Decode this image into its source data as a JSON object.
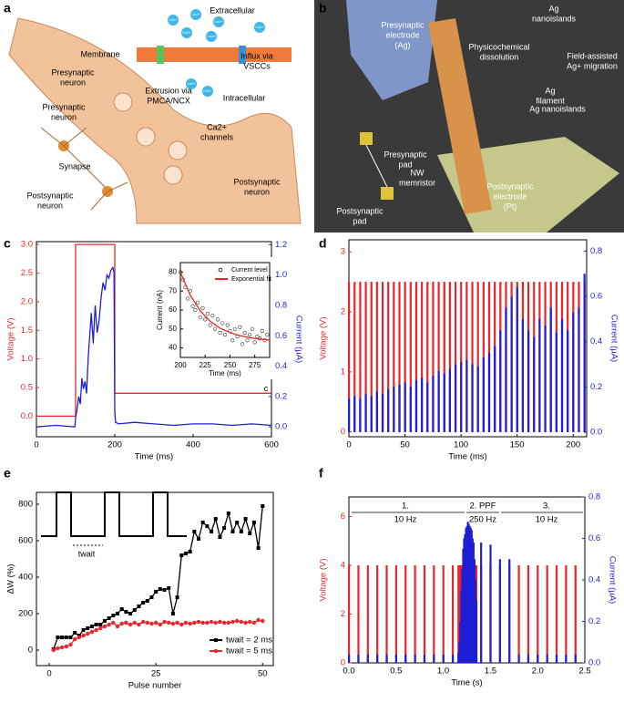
{
  "panel_labels": [
    "a",
    "b",
    "c",
    "d",
    "e",
    "f"
  ],
  "illustration_a": {
    "ion": "Ca2+",
    "labels": [
      [
        "Extracellular"
      ],
      [
        "Membrane"
      ],
      [
        "Influx via",
        "VSCCs"
      ],
      [
        "Extrusion via",
        "PMCA/NCX"
      ],
      [
        "Intracellular"
      ],
      [
        "Presynaptic",
        "neuron"
      ],
      [
        "Presynaptic",
        "neuron"
      ],
      [
        "Ca2+",
        "channels"
      ],
      [
        "Synapse"
      ],
      [
        "Postsynaptic",
        "neuron"
      ],
      [
        "Postsynaptic",
        "neuron"
      ]
    ]
  },
  "illustration_b": {
    "labels": [
      [
        "Presynaptic",
        "electrode",
        "(Ag)"
      ],
      [
        "Ag",
        "nanoislands"
      ],
      [
        "Physicochemical",
        "dissolution"
      ],
      [
        "Field-assisted",
        "Ag+ migration"
      ],
      [
        "Ag",
        "filament"
      ],
      [
        "Ag nanoislands"
      ],
      [
        "Presynaptic",
        "pad"
      ],
      [
        "NW",
        "memristor"
      ],
      [
        "Postsynaptic",
        "electrode",
        "(Pt)"
      ],
      [
        "Postsynaptic",
        "pad"
      ]
    ]
  },
  "chart_data": [
    {
      "type": "line",
      "xlabel": "Time (ms)",
      "ylabel": "Voltage (V)",
      "y2label": "Current (µA)",
      "y_color": "#e8262b",
      "y2_color": "#1f1fd6",
      "xlim": [
        0,
        600
      ],
      "xticks": [
        0,
        200,
        400,
        600
      ],
      "ylim": [
        -0.36,
        3.05
      ],
      "yticks": [
        {
          "value": 0,
          "label": "0.0"
        },
        0.5,
        {
          "value": 1,
          "label": "1.0"
        },
        1.5,
        {
          "value": 2,
          "label": "2.0"
        },
        2.5,
        {
          "value": 3,
          "label": "3.0"
        }
      ],
      "y2lim": [
        -0.065,
        1.22
      ],
      "y2ticks": [
        {
          "value": 0,
          "label": "0.0"
        },
        0.2,
        0.4,
        0.6,
        0.8,
        {
          "value": 1,
          "label": "1.0"
        },
        1.2
      ],
      "annotations": [
        "c"
      ],
      "series": [
        {
          "color": "#e8262b",
          "axis": "y",
          "x": [
            0,
            100,
            100,
            200,
            200,
            600
          ],
          "values": [
            0,
            0,
            3,
            3,
            0.4,
            0.4
          ]
        },
        {
          "color": "#1f1fd6",
          "axis": "y2",
          "x": [
            0,
            50,
            98,
            100,
            104,
            108,
            112,
            116,
            120,
            124,
            128,
            132,
            136,
            140,
            145,
            150,
            155,
            160,
            165,
            170,
            175,
            180,
            185,
            190,
            195,
            198,
            200,
            202,
            210,
            250,
            300,
            350,
            400,
            450,
            500,
            550,
            600
          ],
          "values": [
            0.0,
            0.01,
            0.0,
            0.06,
            0.12,
            0.2,
            0.15,
            0.32,
            0.25,
            0.3,
            0.22,
            0.45,
            0.6,
            0.75,
            0.55,
            0.8,
            0.62,
            0.7,
            0.85,
            0.95,
            0.9,
            1.0,
            0.98,
            1.03,
            1.05,
            1.02,
            0.1,
            0.03,
            0.02,
            0.03,
            0.02,
            0.01,
            0.02,
            0.02,
            0.01,
            0.02,
            0.01
          ]
        }
      ]
    },
    {
      "type": "scatter",
      "xlabel": "Time (ms)",
      "ylabel": "Current (nA)",
      "xlim": [
        200,
        290
      ],
      "xticks": [
        200,
        225,
        250,
        275
      ],
      "ylim": [
        35,
        85
      ],
      "yticks": [
        40,
        50,
        60,
        70,
        80
      ],
      "series": [
        {
          "name": "Current level",
          "color": "#333333",
          "x": [
            200,
            202.5,
            205,
            207.5,
            210,
            212.5,
            215,
            217.5,
            220,
            222.5,
            225,
            227.5,
            230,
            232.5,
            235,
            237.5,
            240,
            242.5,
            245,
            247.5,
            250,
            252.5,
            255,
            257.5,
            260,
            262.5,
            265,
            267.5,
            270,
            272.5,
            275,
            277.5,
            280,
            282.5,
            285,
            287.5
          ],
          "values": [
            80,
            76,
            72,
            66,
            70,
            62,
            60,
            64,
            56,
            61,
            55,
            58,
            52,
            57,
            50,
            55,
            48,
            53,
            47,
            52,
            49,
            44,
            50,
            46,
            51,
            42,
            48,
            44,
            47,
            50,
            43,
            46,
            45,
            49,
            44,
            47
          ]
        },
        {
          "name": "Exponential fit",
          "type": "line",
          "color": "#e8262b",
          "x": [
            200,
            210,
            220,
            230,
            240,
            250,
            260,
            270,
            280,
            290
          ],
          "values": [
            80,
            67.8,
            59.6,
            54.1,
            50.4,
            48.1,
            46.5,
            45.4,
            44.7,
            44.2
          ]
        }
      ]
    },
    {
      "type": "pulse",
      "xlabel": "Time (ms)",
      "ylabel": "Voltage (V)",
      "y2label": "Current (µA)",
      "y_color": "#e8262b",
      "y2_color": "#1f1fd6",
      "xlim": [
        0,
        212
      ],
      "xticks": [
        0,
        50,
        100,
        150,
        200
      ],
      "ylim": [
        -0.08,
        3.2
      ],
      "yticks": [
        0,
        1,
        2,
        3
      ],
      "y2lim": [
        -0.02,
        0.85
      ],
      "y2ticks": [
        {
          "value": 0,
          "label": "0.0"
        },
        0.2,
        0.4,
        0.6,
        0.8
      ],
      "x": [
        0,
        5,
        10,
        15,
        20,
        25,
        30,
        35,
        40,
        45,
        50,
        55,
        60,
        65,
        70,
        75,
        80,
        85,
        90,
        95,
        100,
        105,
        110,
        115,
        120,
        125,
        130,
        135,
        140,
        145,
        150,
        155,
        160,
        165,
        170,
        175,
        180,
        185,
        190,
        195,
        200,
        205,
        210
      ],
      "series": [
        {
          "color": "#e8262b",
          "axis": "y",
          "values": [
            2.5,
            2.5,
            2.5,
            2.5,
            2.5,
            2.5,
            2.5,
            2.5,
            2.5,
            2.5,
            2.5,
            2.5,
            2.5,
            2.5,
            2.5,
            2.5,
            2.5,
            2.5,
            2.5,
            2.5,
            2.5,
            2.5,
            2.5,
            2.5,
            2.5,
            2.5,
            2.5,
            2.5,
            2.5,
            2.5,
            2.5,
            2.5,
            2.5,
            2.5,
            2.5,
            2.5,
            2.5,
            2.5,
            2.5,
            2.5,
            2.5,
            2.5,
            2.5
          ]
        },
        {
          "color": "#1f1fd6",
          "axis": "y2",
          "values": [
            0.15,
            0.16,
            0.15,
            0.17,
            0.16,
            0.18,
            0.17,
            0.19,
            0.2,
            0.21,
            0.22,
            0.2,
            0.23,
            0.24,
            0.22,
            0.25,
            0.27,
            0.26,
            0.28,
            0.3,
            0.31,
            0.32,
            0.3,
            0.29,
            0.33,
            0.35,
            0.38,
            0.45,
            0.55,
            0.6,
            0.64,
            0.5,
            0.45,
            0.42,
            0.5,
            0.47,
            0.55,
            0.44,
            0.5,
            0.45,
            0.53,
            0.55,
            0.7
          ]
        }
      ]
    },
    {
      "type": "line",
      "xlabel": "Pulse number",
      "ylabel": "ΔW (%)",
      "xlim": [
        -3,
        52.5
      ],
      "xticks": [
        0,
        25,
        50
      ],
      "ylim": [
        -85,
        865
      ],
      "yticks": [
        0,
        200,
        400,
        600,
        800
      ],
      "waveform_label": "twait",
      "legend": "lower right",
      "x": [
        1,
        2,
        3,
        4,
        5,
        6,
        7,
        8,
        9,
        10,
        11,
        12,
        13,
        14,
        15,
        16,
        17,
        18,
        19,
        20,
        21,
        22,
        23,
        24,
        25,
        26,
        27,
        28,
        29,
        30,
        31,
        32,
        33,
        34,
        35,
        36,
        37,
        38,
        39,
        40,
        41,
        42,
        43,
        44,
        45,
        46,
        47,
        48,
        49,
        50
      ],
      "series": [
        {
          "name": "twait = 2 ms",
          "color": "#000000",
          "marker": "square",
          "values": [
            5,
            70,
            70,
            70,
            70,
            95,
            80,
            110,
            120,
            130,
            140,
            140,
            160,
            175,
            190,
            200,
            225,
            210,
            200,
            220,
            240,
            260,
            270,
            290,
            320,
            335,
            330,
            340,
            200,
            290,
            520,
            530,
            540,
            650,
            610,
            700,
            680,
            650,
            720,
            620,
            670,
            750,
            650,
            700,
            650,
            720,
            640,
            700,
            560,
            790
          ]
        },
        {
          "name": "twait = 5 ms",
          "color": "#e8262b",
          "marker": "circle",
          "values": [
            0,
            10,
            15,
            20,
            30,
            60,
            70,
            80,
            90,
            100,
            110,
            120,
            130,
            140,
            150,
            130,
            145,
            150,
            140,
            150,
            140,
            155,
            150,
            145,
            150,
            140,
            155,
            150,
            145,
            150,
            140,
            150,
            145,
            150,
            155,
            150,
            150,
            155,
            150,
            155,
            150,
            150,
            155,
            160,
            155,
            150,
            155,
            150,
            165,
            160
          ]
        }
      ]
    },
    {
      "type": "pulse",
      "xlabel": "Time (s)",
      "ylabel": "Voltage (V)",
      "y2label": "Current (µA)",
      "y_color": "#e8262b",
      "y2_color": "#1f1fd6",
      "xlim": [
        0,
        2.5
      ],
      "xticks": [
        {
          "value": 0,
          "label": "0.0"
        },
        0.5,
        {
          "value": 1,
          "label": "1.0"
        },
        1.5,
        {
          "value": 2,
          "label": "2.0"
        },
        2.5
      ],
      "ylim": [
        0,
        6.8
      ],
      "yticks": [
        0,
        2,
        4,
        6
      ],
      "y2lim": [
        0,
        0.8
      ],
      "y2ticks": [
        {
          "value": 0,
          "label": "0.0"
        },
        0.2,
        0.4,
        0.6,
        0.8
      ],
      "annotations": [
        "1.",
        "10 Hz",
        "2. PPF",
        "250 Hz",
        "3.",
        "10 Hz"
      ],
      "x": [
        0,
        0.1,
        0.2,
        0.3,
        0.4,
        0.5,
        0.6,
        0.7,
        0.8,
        0.9,
        1.0,
        1.1,
        1.16,
        1.17,
        1.18,
        1.19,
        1.2,
        1.21,
        1.22,
        1.23,
        1.24,
        1.25,
        1.26,
        1.27,
        1.28,
        1.29,
        1.3,
        1.31,
        1.32,
        1.33,
        1.34,
        1.35,
        1.4,
        1.5,
        1.6,
        1.7,
        1.8,
        1.9,
        2.0,
        2.1,
        2.2,
        2.3,
        2.4
      ],
      "series": [
        {
          "color": "#e8262b",
          "axis": "y",
          "values": [
            4,
            4,
            4,
            4,
            4,
            4,
            4,
            4,
            4,
            4,
            4,
            4,
            4,
            4,
            4,
            4,
            4,
            4,
            4,
            4,
            4,
            4,
            4,
            4,
            4,
            4,
            4,
            4,
            4,
            4,
            4,
            4,
            4,
            4,
            4,
            4,
            4,
            4,
            4,
            4,
            4,
            4,
            4
          ]
        },
        {
          "color": "#1f1fd6",
          "axis": "y2",
          "values": [
            0.04,
            0.04,
            0.04,
            0.04,
            0.04,
            0.04,
            0.04,
            0.04,
            0.04,
            0.04,
            0.04,
            0.04,
            0.05,
            0.1,
            0.2,
            0.35,
            0.45,
            0.55,
            0.6,
            0.62,
            0.65,
            0.66,
            0.68,
            0.67,
            0.66,
            0.65,
            0.64,
            0.6,
            0.58,
            0.5,
            0.4,
            0.3,
            0.58,
            0.57,
            0.5,
            0.5,
            0.04,
            0.04,
            0.04,
            0.04,
            0.04,
            0.04,
            0.04
          ]
        }
      ]
    }
  ]
}
